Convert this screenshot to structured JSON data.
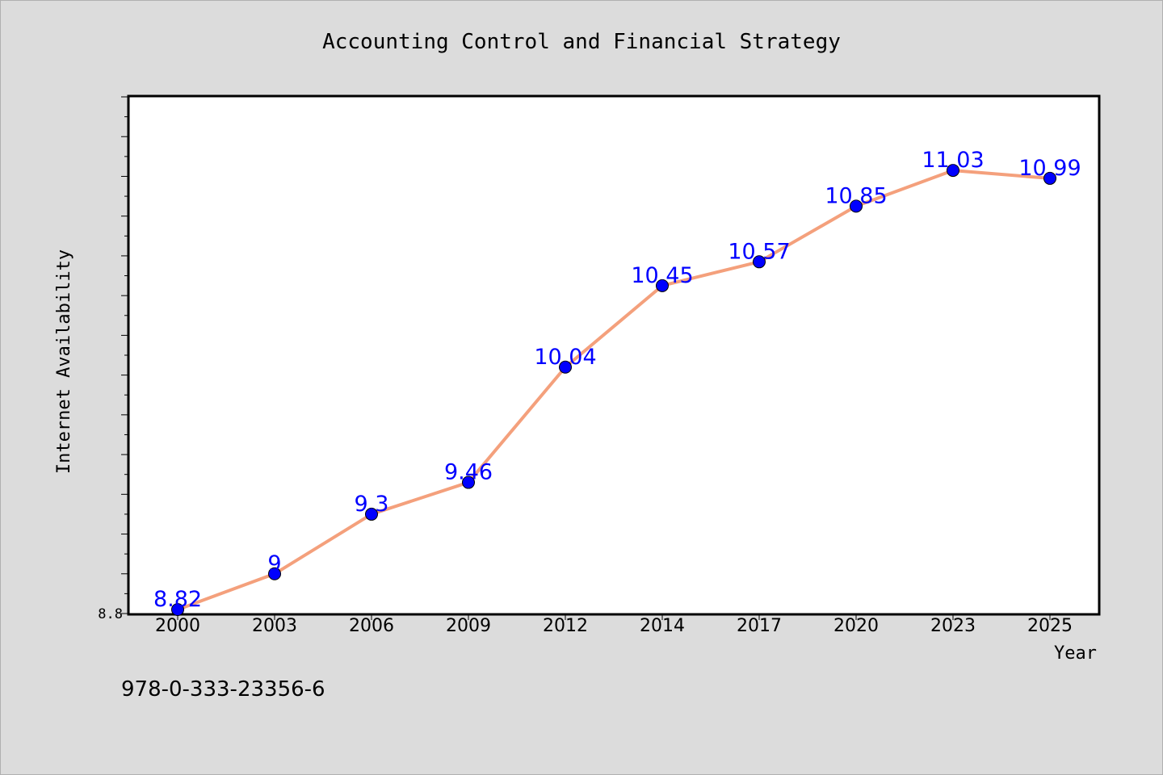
{
  "chart_data": {
    "type": "line",
    "title": "Accounting Control and Financial Strategy",
    "xlabel": "Year",
    "ylabel": "Internet Availability",
    "categories": [
      "2000",
      "2003",
      "2006",
      "2009",
      "2012",
      "2014",
      "2017",
      "2020",
      "2023",
      "2025"
    ],
    "series": [
      {
        "values": [
          8.82,
          9.0,
          9.3,
          9.46,
          10.04,
          10.45,
          10.57,
          10.85,
          11.03,
          10.99
        ],
        "data_labels": [
          "8.82",
          "9",
          "9.3",
          "9.46",
          "10.04",
          "10.45",
          "10.57",
          "10.85",
          "11.03",
          "10.99"
        ]
      }
    ],
    "y_tick_labels": [
      "8.8"
    ],
    "ylim": [
      8.8,
      11.4
    ],
    "grid": false,
    "legend": "none",
    "colors": {
      "line": "#f4a07c",
      "marker": "#0000ff",
      "label": "#0000ff",
      "background": "#dcdcdc",
      "plot_background": "#ffffff"
    }
  },
  "footer": {
    "isbn": "978-0-333-23356-6"
  }
}
